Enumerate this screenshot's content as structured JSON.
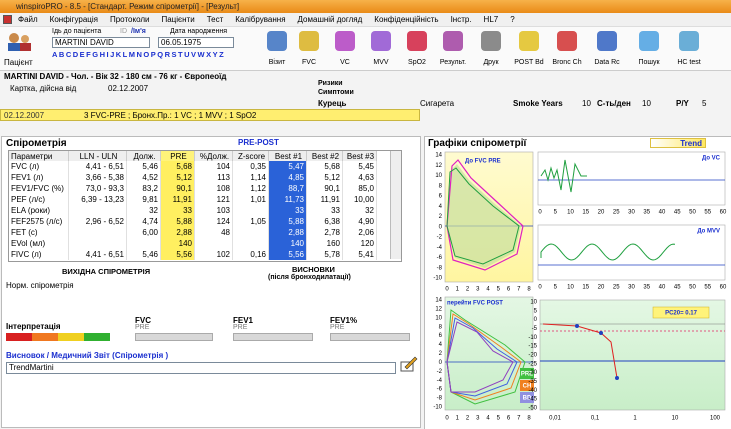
{
  "window": {
    "title": "winspiroPRO - 8.5 - [Стандарт. Режим спірометрії] - [Результ]"
  },
  "menu": [
    "Файл",
    "Конфігурація",
    "Протоколи",
    "Пацієнти",
    "Тест",
    "Калібрування",
    "Домашній догляд",
    "Конфіденційність",
    "Інстр.",
    "HL7",
    "?"
  ],
  "toolbar": {
    "patient_button": "Пацієнт",
    "search_label": "Ідь до пацієнта",
    "id_label": "ID",
    "name_label": "/Ім'я",
    "dob_label": "Дата народження",
    "name": "MARTINI DAVID",
    "dob": "06.05.1975",
    "alphabet": "ABCDEFGHIJKLMNOPQRSTUVWXYZ",
    "buttons": [
      "Візит",
      "FVC",
      "VC",
      "MVV",
      "SpO2",
      "Результ.",
      "Друк",
      "POST Bd",
      "Bronc Ch",
      "Data Rc",
      "Пошук",
      "HC test"
    ]
  },
  "patient": {
    "summary": "MARTINI DAVID - Чол. - Вік 32 - 180 см - 76 кг - Європеоїд",
    "card_label": "Картка, дійсна від",
    "card_date": "02.12.2007",
    "risks": "Ризики",
    "symptoms": "Симптоми",
    "smoker": "Курець",
    "smoke_type": "Сигарета",
    "smoke_years_label": "Smoke Years",
    "smoke_years": "10",
    "per_day_label": "С-ть/ден",
    "per_day": "10",
    "py_label": "P/Y",
    "py": "5"
  },
  "visit": {
    "date": "02.12.2007",
    "tests": "3 FVC-PRE ; Бронх.Пр.: 1 VC ; 1 MVV ; 1 SpO2"
  },
  "spirometry": {
    "title": "Спірометрія",
    "mode": "PRE-POST"
  },
  "table": {
    "headers": [
      "Параметри",
      "LLN - ULN",
      "Долж.",
      "PRE",
      "%Долж.",
      "Z-score",
      "Best #1",
      "Best #2",
      "Best #3"
    ],
    "rows": [
      [
        "FVC (л)",
        "4,41 - 6,51",
        "5,46",
        "5,68",
        "104",
        "0,35",
        "5,47",
        "5,68",
        "5,45"
      ],
      [
        "FEV1 (л)",
        "3,66 - 5,38",
        "4,52",
        "5,12",
        "113",
        "1,14",
        "4,85",
        "5,12",
        "4,63"
      ],
      [
        "FEV1/FVC (%)",
        "73,0 - 93,3",
        "83,2",
        "90,1",
        "108",
        "1,12",
        "88,7",
        "90,1",
        "85,0"
      ],
      [
        "PEF (л/с)",
        "6,39 - 13,23",
        "9,81",
        "11,91",
        "121",
        "1,01",
        "11,73",
        "11,91",
        "10,00"
      ],
      [
        "ELA (роки)",
        null,
        "32",
        "33",
        "103",
        null,
        "33",
        "33",
        "32"
      ],
      [
        "FEF2575 (л/с)",
        "2,96 - 6,52",
        "4,74",
        "5,88",
        "124",
        "1,05",
        "5,88",
        "6,38",
        "4,90"
      ],
      [
        "FET (с)",
        null,
        "6,00",
        "2,88",
        "48",
        null,
        "2,88",
        "2,78",
        "2,06"
      ],
      [
        "EVol (мл)",
        null,
        null,
        "140",
        null,
        null,
        "140",
        "160",
        "120"
      ],
      [
        "FIVC (л)",
        "4,41 - 6,51",
        "5,46",
        "5,56",
        "102",
        "0,16",
        "5,56",
        "5,78",
        "5,41"
      ]
    ]
  },
  "conclusions": {
    "baseline_title": "ВИХІДНА СПІРОМЕТРІЯ",
    "conclusions_title": "ВИСНОВКИ",
    "conclusions_sub": "(після бронходилатації)",
    "result": "Норм. спірометрія"
  },
  "interpretation": {
    "label": "Інтерпретація",
    "fvc": "FVC",
    "fvc_sub": "PRE",
    "fev1": "FEV1",
    "fev1_sub": "PRE",
    "fev1pct": "FEV1%",
    "fev1pct_sub": "PRE"
  },
  "report": {
    "label": "Висновок / Медичний Звіт (Спірометрія )",
    "text": "TrendMartini"
  },
  "graphs": {
    "title": "Графіки спірометрії",
    "trend_button": "Trend",
    "fvc_pre": {
      "title": "До FVC PRE",
      "yticks": [
        "14",
        "12",
        "10",
        "8",
        "6",
        "4",
        "2",
        "0",
        "-2",
        "-4",
        "-6",
        "-8",
        "-10"
      ],
      "xticks": [
        "0",
        "1",
        "2",
        "3",
        "4",
        "5",
        "6",
        "7",
        "8"
      ]
    },
    "vc": {
      "title": "До VC",
      "xticks": [
        "0",
        "5",
        "10",
        "15",
        "20",
        "25",
        "30",
        "35",
        "40",
        "45",
        "50",
        "55",
        "60"
      ]
    },
    "mvv": {
      "title": "До MVV",
      "xticks": [
        "0",
        "5",
        "10",
        "15",
        "20",
        "25",
        "30",
        "35",
        "40",
        "45",
        "50",
        "55",
        "60"
      ]
    },
    "fvc_post": {
      "title": "перейти FVC POST",
      "yticks": [
        "14",
        "12",
        "10",
        "8",
        "6",
        "4",
        "2",
        "0",
        "-2",
        "-4",
        "-6",
        "-8",
        "-10"
      ],
      "xticks": [
        "0",
        "1",
        "2",
        "3",
        "4",
        "5",
        "6",
        "7",
        "8"
      ],
      "legend": [
        "PRE",
        "CH",
        "BD"
      ]
    },
    "pc20": {
      "title": "PC20= 0.17",
      "yticks": [
        "10",
        "5",
        "0",
        "-5",
        "-10",
        "-15",
        "-20",
        "-25",
        "-30",
        "-35",
        "-40",
        "-45",
        "-50"
      ],
      "xticks": [
        "0,01",
        "0,1",
        "1",
        "10",
        "100"
      ]
    }
  }
}
